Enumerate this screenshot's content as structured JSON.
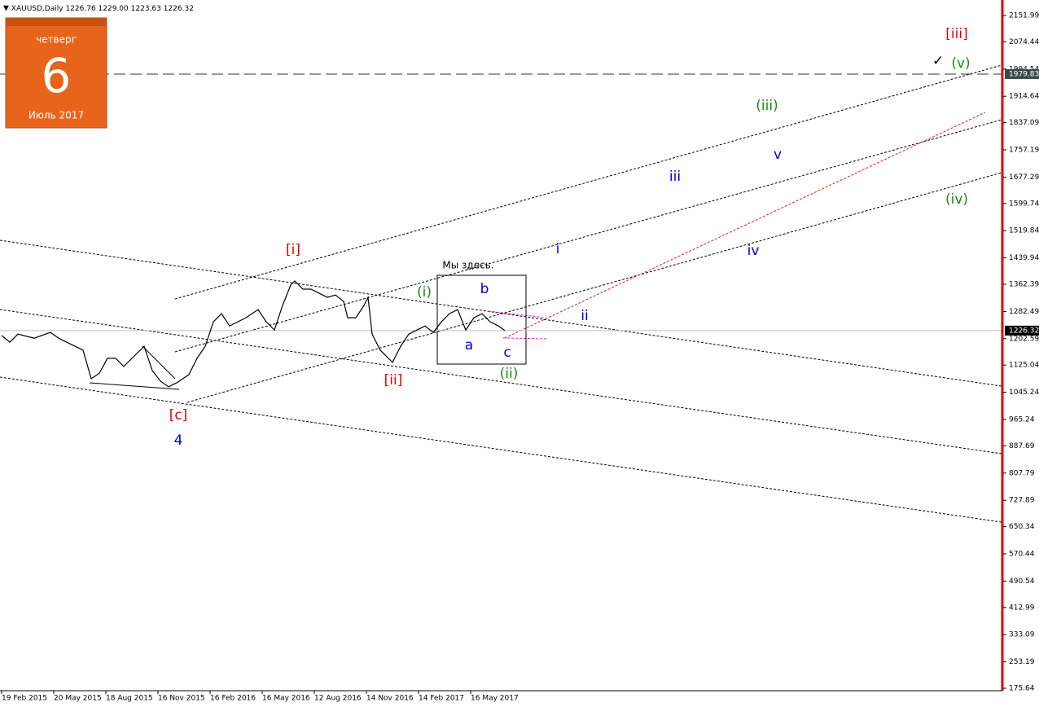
{
  "header": {
    "symbol": "XAUUSD,Daily",
    "ohlc": [
      "1226.76",
      "1229.00",
      "1223.63",
      "1226.32"
    ]
  },
  "calendar": {
    "weekday": "четверг",
    "day": "6",
    "month": "Июль 2017"
  },
  "chart_data": {
    "type": "line",
    "x": [
      0,
      10,
      20,
      40,
      60,
      70,
      80,
      100,
      110,
      120,
      130,
      140,
      150,
      160,
      175,
      185,
      195,
      205,
      215,
      230,
      240,
      250,
      260,
      270,
      280,
      290,
      300,
      315,
      325,
      335,
      345,
      355,
      360,
      370,
      380,
      390,
      400,
      410,
      420,
      425,
      435,
      445,
      450,
      455,
      465,
      475,
      480,
      490,
      500,
      510,
      520,
      530,
      540,
      550,
      560,
      570,
      580,
      590,
      600,
      610,
      618
    ],
    "series": [
      {
        "name": "XAUUSD",
        "color": "#000000",
        "values": [
          1212,
          1192,
          1216,
          1204,
          1221,
          1204,
          1192,
          1169,
          1085,
          1101,
          1145,
          1145,
          1121,
          1145,
          1180,
          1109,
          1078,
          1061,
          1073,
          1097,
          1145,
          1180,
          1252,
          1276,
          1240,
          1252,
          1264,
          1288,
          1252,
          1228,
          1300,
          1360,
          1372,
          1348,
          1348,
          1336,
          1324,
          1331,
          1312,
          1264,
          1264,
          1300,
          1324,
          1216,
          1169,
          1145,
          1133,
          1180,
          1216,
          1228,
          1240,
          1221,
          1252,
          1276,
          1288,
          1228,
          1264,
          1276,
          1252,
          1240,
          1226.32
        ]
      }
    ],
    "xlim": [
      -2,
      1228
    ],
    "ylim": [
      168.46,
      2197.45
    ],
    "xticks": [
      {
        "value": 0,
        "label": "19 Feb 2015"
      },
      {
        "value": 64,
        "label": "20 May 2015"
      },
      {
        "value": 128,
        "label": "18 Aug 2015"
      },
      {
        "value": 192,
        "label": "16 Nov 2015"
      },
      {
        "value": 256,
        "label": "16 Feb 2016"
      },
      {
        "value": 320,
        "label": "16 May 2016"
      },
      {
        "value": 384,
        "label": "12 Aug 2016"
      },
      {
        "value": 448,
        "label": "14 Nov 2016"
      },
      {
        "value": 512,
        "label": "14 Feb 2017"
      },
      {
        "value": 576,
        "label": "16 May 2017"
      }
    ],
    "yticks": [
      2151.99,
      2074.44,
      1994.54,
      1914.64,
      1837.09,
      1757.19,
      1677.29,
      1599.74,
      1519.84,
      1439.94,
      1362.39,
      1282.49,
      1202.59,
      1125.04,
      1045.24,
      965.24,
      887.69,
      807.79,
      727.89,
      650.34,
      570.44,
      490.54,
      412.99,
      333.09,
      253.19,
      175.64
    ],
    "hlines": [
      1979.83,
      1226.32
    ],
    "annotations": [
      "[iii]",
      "✓",
      "(v)",
      "(iii)",
      "v",
      "iii",
      "(iv)",
      "i",
      "iv",
      "[i]",
      "Мы здесь.",
      "(i)",
      "b",
      "ii",
      "a",
      "c",
      "(ii)",
      "[ii]",
      "[c]",
      "4"
    ]
  }
}
